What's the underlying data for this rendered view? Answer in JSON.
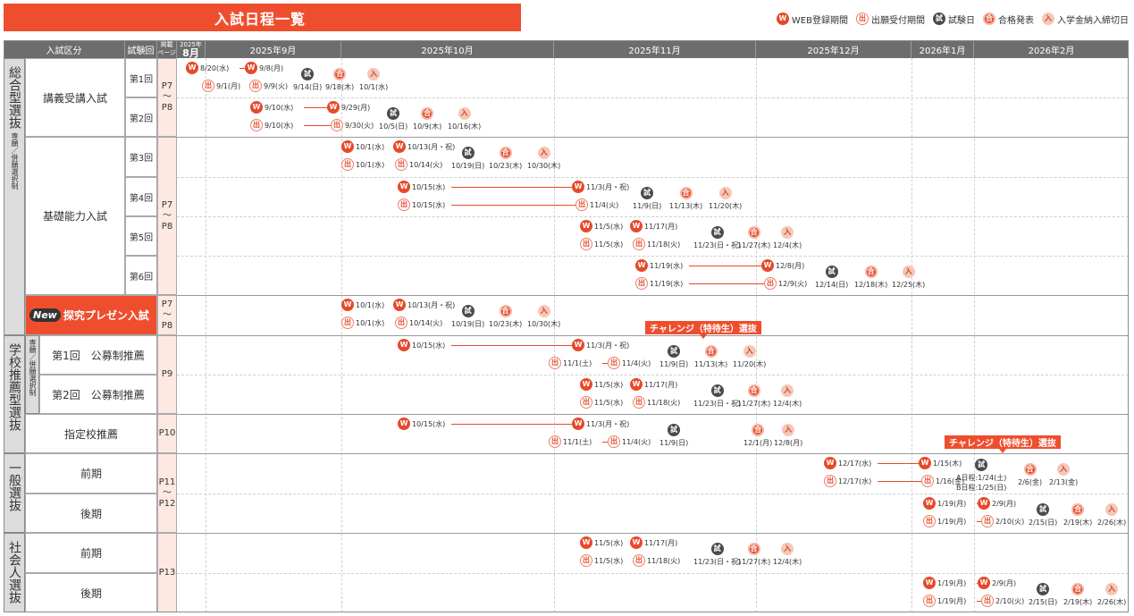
{
  "title": "入試日程一覧",
  "legend": [
    {
      "icon": "W",
      "mark": "W",
      "label": "WEB登録期間"
    },
    {
      "icon": "D",
      "mark": "出",
      "label": "出願受付期間"
    },
    {
      "icon": "S",
      "mark": "試",
      "label": "試験日"
    },
    {
      "icon": "G",
      "mark": "合",
      "label": "合格発表"
    },
    {
      "icon": "N",
      "mark": "入",
      "label": "入学金納入締切日"
    }
  ],
  "header": {
    "category": "入試区分",
    "round": "試験回",
    "page_top": "掲載",
    "page_bottom": "ページ",
    "aug_year": "2025年",
    "aug_month": "8月",
    "months": [
      "2025年9月",
      "2025年10月",
      "2025年11月",
      "2025年12月",
      "2026年1月",
      "2026年2月"
    ]
  },
  "groups": [
    {
      "chars": "総合型選抜",
      "sub": "専願／併願選択制"
    },
    {
      "chars": "学校推薦型選抜",
      "sub": ""
    },
    {
      "chars": "一般選抜",
      "sub": ""
    },
    {
      "chars": "社会人選抜",
      "sub": ""
    }
  ],
  "school_sub": "専願／併願選択制",
  "categories": {
    "kougi": "講義受講入試",
    "kiso": "基礎能力入試",
    "new_tag": "New",
    "tankyu": "探究プレゼン入試",
    "koubo1": "第1回　公募制推薦",
    "koubo2": "第2回　公募制推薦",
    "shitei": "指定校推薦",
    "ippan_zenki": "前期",
    "ippan_kouki": "後期",
    "shakai_zenki": "前期",
    "shakai_kouki": "後期"
  },
  "rounds": [
    "第1回",
    "第2回",
    "第3回",
    "第4回",
    "第5回",
    "第6回"
  ],
  "pages": {
    "sogo": [
      "P7",
      "〜",
      "P8"
    ],
    "sogo2": [
      "P7",
      "〜",
      "P8"
    ],
    "tankyu": [
      "P7",
      "〜",
      "P8"
    ],
    "suisen": [
      "P9"
    ],
    "shitei": [
      "P10"
    ],
    "ippan": [
      "P11",
      "〜",
      "P12"
    ],
    "shakai": [
      "P13"
    ]
  },
  "challenge_label": "チャレンジ（特待生）選抜",
  "ippan_exam_note": [
    "A日程:1/24(土)",
    "B日程:1/25(日)"
  ],
  "rows": [
    {
      "w": [
        "8/20(水)",
        "9/8(月)"
      ],
      "d": [
        "9/1(月)",
        "9/9(火)"
      ],
      "s": "9/14(日)",
      "g": "9/18(木)",
      "n": "10/1(水)"
    },
    {
      "w": [
        "9/10(水)",
        "9/29(月)"
      ],
      "d": [
        "9/10(水)",
        "9/30(火)"
      ],
      "s": "10/5(日)",
      "g": "10/9(木)",
      "n": "10/16(木)"
    },
    {
      "w": [
        "10/1(水)",
        "10/13(月・祝)"
      ],
      "d": [
        "10/1(水)",
        "10/14(火)"
      ],
      "s": "10/19(日)",
      "g": "10/23(木)",
      "n": "10/30(木)"
    },
    {
      "w": [
        "10/15(水)",
        "11/3(月・祝)"
      ],
      "d": [
        "10/15(水)",
        "11/4(火)"
      ],
      "s": "11/9(日)",
      "g": "11/13(木)",
      "n": "11/20(木)"
    },
    {
      "w": [
        "11/5(水)",
        "11/17(月)"
      ],
      "d": [
        "11/5(水)",
        "11/18(火)"
      ],
      "s": "11/23(日・祝)",
      "g": "11/27(木)",
      "n": "12/4(木)"
    },
    {
      "w": [
        "11/19(水)",
        "12/8(月)"
      ],
      "d": [
        "11/19(水)",
        "12/9(火)"
      ],
      "s": "12/14(日)",
      "g": "12/18(木)",
      "n": "12/25(木)"
    },
    {
      "w": [
        "10/1(水)",
        "10/13(月・祝)"
      ],
      "d": [
        "10/1(水)",
        "10/14(火)"
      ],
      "s": "10/19(日)",
      "g": "10/23(木)",
      "n": "10/30(木)"
    },
    {
      "w": [
        "10/15(水)",
        "11/3(月・祝)"
      ],
      "d": [
        "11/1(土)",
        "11/4(火)"
      ],
      "s": "11/9(日)",
      "g": "11/13(木)",
      "n": "11/20(木)"
    },
    {
      "w": [
        "11/5(水)",
        "11/17(月)"
      ],
      "d": [
        "11/5(水)",
        "11/18(火)"
      ],
      "s": "11/23(日・祝)",
      "g": "11/27(木)",
      "n": "12/4(木)"
    },
    {
      "w": [
        "10/15(水)",
        "11/3(月・祝)"
      ],
      "d": [
        "11/1(土)",
        "11/4(火)"
      ],
      "s": "11/9(日)",
      "g": "12/1(月)",
      "n": "12/8(月)"
    },
    {
      "w": [
        "12/17(水)",
        "1/15(木)"
      ],
      "d": [
        "12/17(水)",
        "1/16(金)"
      ],
      "s": "",
      "g": "2/6(金)",
      "n": "2/13(金)"
    },
    {
      "w": [
        "1/19(月)",
        "2/9(月)"
      ],
      "d": [
        "1/19(月)",
        "2/10(火)"
      ],
      "s": "2/15(日)",
      "g": "2/19(木)",
      "n": "2/26(木)"
    },
    {
      "w": [
        "11/5(水)",
        "11/17(月)"
      ],
      "d": [
        "11/5(水)",
        "11/18(火)"
      ],
      "s": "11/23(日・祝)",
      "g": "11/27(木)",
      "n": "12/4(木)"
    },
    {
      "w": [
        "1/19(月)",
        "2/9(月)"
      ],
      "d": [
        "1/19(月)",
        "2/10(火)"
      ],
      "s": "2/15(日)",
      "g": "2/19(木)",
      "n": "2/26(木)"
    }
  ]
}
